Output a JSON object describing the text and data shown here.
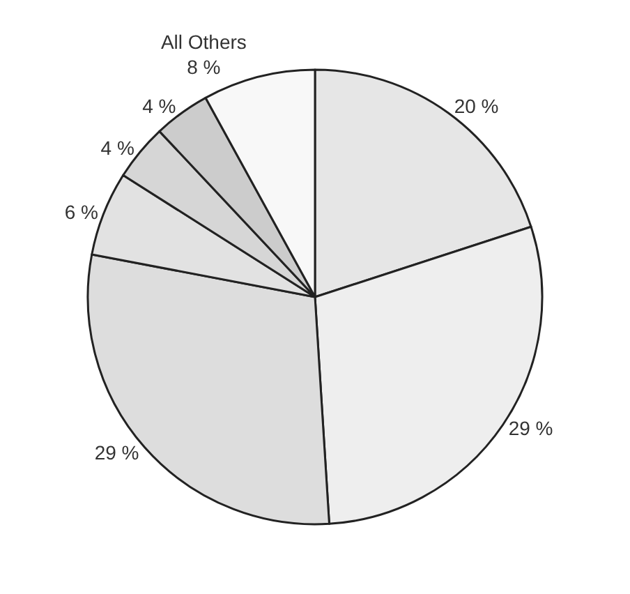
{
  "chart_data": {
    "type": "pie",
    "categories": [
      null,
      null,
      null,
      null,
      null,
      null,
      "All Others"
    ],
    "values": [
      20,
      29,
      29,
      6,
      4,
      4,
      8
    ],
    "value_labels": [
      "20 %",
      "29 %",
      "29 %",
      "6 %",
      "4 %",
      "4 %",
      "8 %"
    ],
    "colors": [
      "#e6e6e6",
      "#eeeeee",
      "#dddddd",
      "#e2e2e2",
      "#d6d6d6",
      "#cccccc",
      "#f8f8f8"
    ]
  }
}
